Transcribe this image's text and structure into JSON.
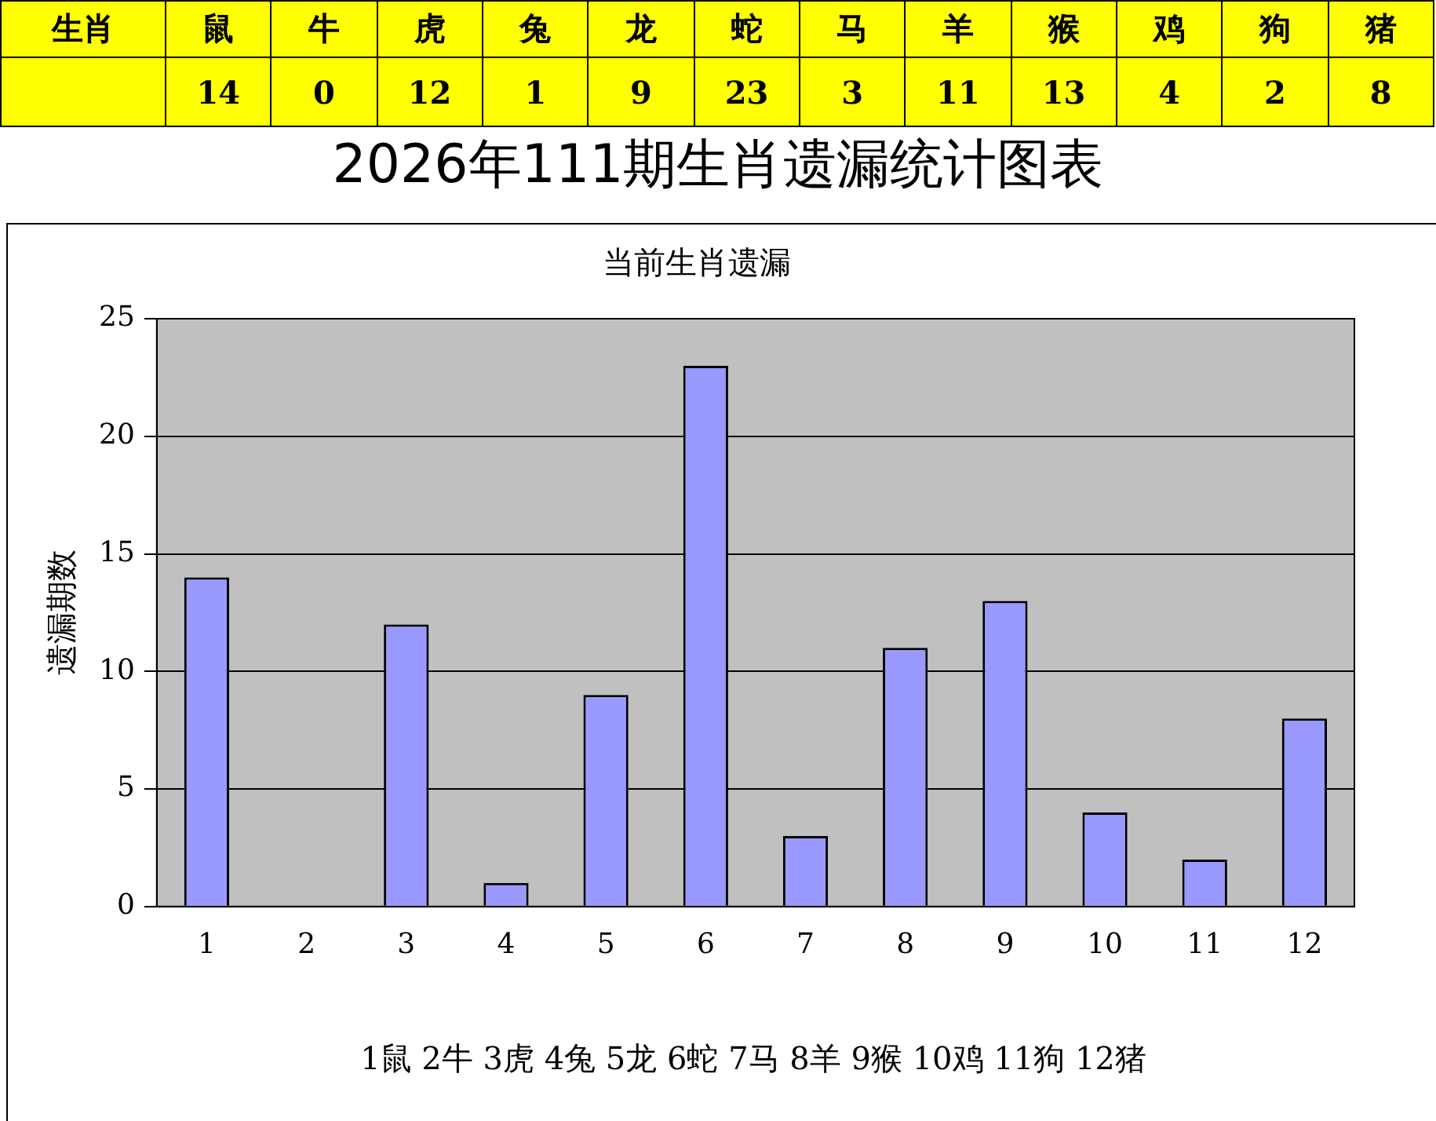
{
  "chart_data": [
    {
      "type": "other",
      "categories": [
        "鼠",
        "牛",
        "虎",
        "兔",
        "龙",
        "蛇",
        "马",
        "羊",
        "猴",
        "鸡",
        "狗",
        "猪"
      ],
      "values": [
        14,
        0,
        12,
        1,
        9,
        23,
        3,
        11,
        13,
        4,
        2,
        8
      ],
      "color": "#ffff00",
      "data_labels": true,
      "annotations": [
        "生肖"
      ]
    },
    {
      "type": "bar",
      "title": "2026年111期生肖遗漏统计图表",
      "subtitle": "当前生肖遗漏",
      "ylabel": "遗漏期数",
      "categories": [
        "1",
        "2",
        "3",
        "4",
        "5",
        "6",
        "7",
        "8",
        "9",
        "10",
        "11",
        "12"
      ],
      "values": [
        14,
        0,
        12,
        1,
        9,
        23,
        3,
        11,
        13,
        4,
        2,
        8
      ],
      "color": "#9999ff",
      "ylim": [
        0,
        25
      ],
      "yticks": [
        0,
        5,
        10,
        15,
        20,
        25
      ],
      "grid": "y",
      "annotations": [
        "1鼠  2牛  3虎  4兔  5龙  6蛇  7马  8羊  9猴  10鸡  11狗  12猪"
      ]
    }
  ]
}
